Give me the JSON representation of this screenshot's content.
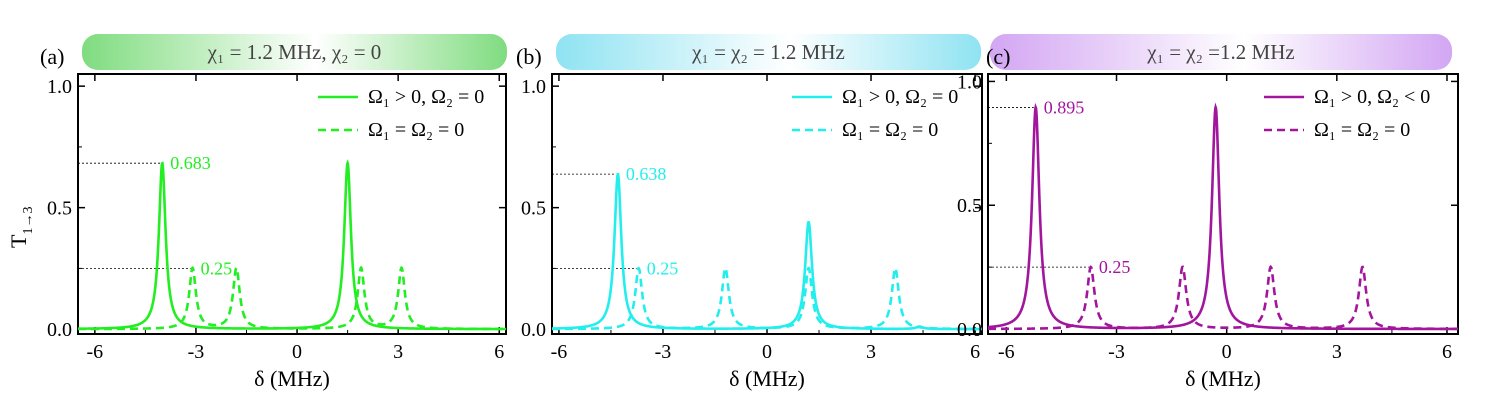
{
  "y_axis_label": "T",
  "y_axis_subscript": "1→3",
  "chart_data": [
    {
      "panel_label": "(a)",
      "banner": "χ₁ = 1.2 MHz, χ₂ = 0",
      "banner_color": "#7fdc7f",
      "color": "#22ee22",
      "type": "line",
      "xlabel": "δ (MHz)",
      "xlim": [
        -6.5,
        6.2
      ],
      "ylim": [
        -0.02,
        1.05
      ],
      "xticks": [
        "-6",
        "-3",
        "0",
        "3",
        "6"
      ],
      "yticks": [
        "0.0",
        "0.5",
        "1.0"
      ],
      "series": [
        {
          "name": "Ω₁ > 0, Ω₂ = 0",
          "style": "solid",
          "width": 0.12,
          "peaks": [
            {
              "x": -4.0,
              "y": 0.683
            },
            {
              "x": 1.5,
              "y": 0.683
            }
          ]
        },
        {
          "name": "Ω₁ = Ω₂ = 0",
          "style": "dashed",
          "width": 0.12,
          "peaks": [
            {
              "x": -3.1,
              "y": 0.25
            },
            {
              "x": -1.8,
              "y": 0.25
            },
            {
              "x": 1.9,
              "y": 0.25
            },
            {
              "x": 3.1,
              "y": 0.25
            }
          ]
        }
      ],
      "annotations": [
        {
          "text": "0.683",
          "x": -4.0,
          "y": 0.683
        },
        {
          "text": "0.25",
          "x": -3.1,
          "y": 0.25
        }
      ]
    },
    {
      "panel_label": "(b)",
      "banner": "χ₁ = χ₂ = 1.2 MHz",
      "banner_color": "#8fe3f2",
      "color": "#22eeee",
      "type": "line",
      "xlabel": "δ (MHz)",
      "xlim": [
        -6.2,
        6.2
      ],
      "ylim": [
        -0.02,
        1.05
      ],
      "xticks": [
        "-6",
        "-3",
        "0",
        "3",
        "6"
      ],
      "yticks": [
        "0.0",
        "0.5",
        "1.0"
      ],
      "series": [
        {
          "name": "Ω₁ > 0, Ω₂ = 0",
          "style": "solid",
          "width": 0.12,
          "peaks": [
            {
              "x": -4.3,
              "y": 0.638
            },
            {
              "x": 1.2,
              "y": 0.44
            },
            {
              "x": 4.4,
              "y": 0.01
            }
          ]
        },
        {
          "name": "Ω₁ = Ω₂ = 0",
          "style": "dashed",
          "width": 0.12,
          "peaks": [
            {
              "x": -3.7,
              "y": 0.25
            },
            {
              "x": -1.2,
              "y": 0.25
            },
            {
              "x": 1.2,
              "y": 0.25
            },
            {
              "x": 3.7,
              "y": 0.25
            }
          ]
        }
      ],
      "annotations": [
        {
          "text": "0.638",
          "x": -4.3,
          "y": 0.638
        },
        {
          "text": "0.25",
          "x": -3.7,
          "y": 0.25
        }
      ]
    },
    {
      "panel_label": "(c)",
      "banner": "χ₁ = χ₂ =1.2 MHz",
      "banner_color": "#d3a6f3",
      "color": "#a2169e",
      "type": "line",
      "xlabel": "δ (MHz)",
      "xlim": [
        -6.5,
        6.3
      ],
      "ylim": [
        -0.02,
        1.03
      ],
      "xticks": [
        "-6",
        "-3",
        "0",
        "3",
        "6"
      ],
      "yticks": [
        "0.0",
        "0.5",
        "1.0"
      ],
      "series": [
        {
          "name": "Ω₁ > 0, Ω₂ < 0",
          "style": "solid",
          "width": 0.12,
          "peaks": [
            {
              "x": -5.2,
              "y": 0.895
            },
            {
              "x": -0.3,
              "y": 0.895
            }
          ]
        },
        {
          "name": "Ω₁ = Ω₂ = 0",
          "style": "dashed",
          "width": 0.12,
          "peaks": [
            {
              "x": -3.7,
              "y": 0.25
            },
            {
              "x": -1.2,
              "y": 0.25
            },
            {
              "x": 1.2,
              "y": 0.25
            },
            {
              "x": 3.7,
              "y": 0.25
            }
          ]
        }
      ],
      "annotations": [
        {
          "text": "0.895",
          "x": -5.2,
          "y": 0.895
        },
        {
          "text": "0.25",
          "x": -3.7,
          "y": 0.25
        }
      ]
    }
  ]
}
